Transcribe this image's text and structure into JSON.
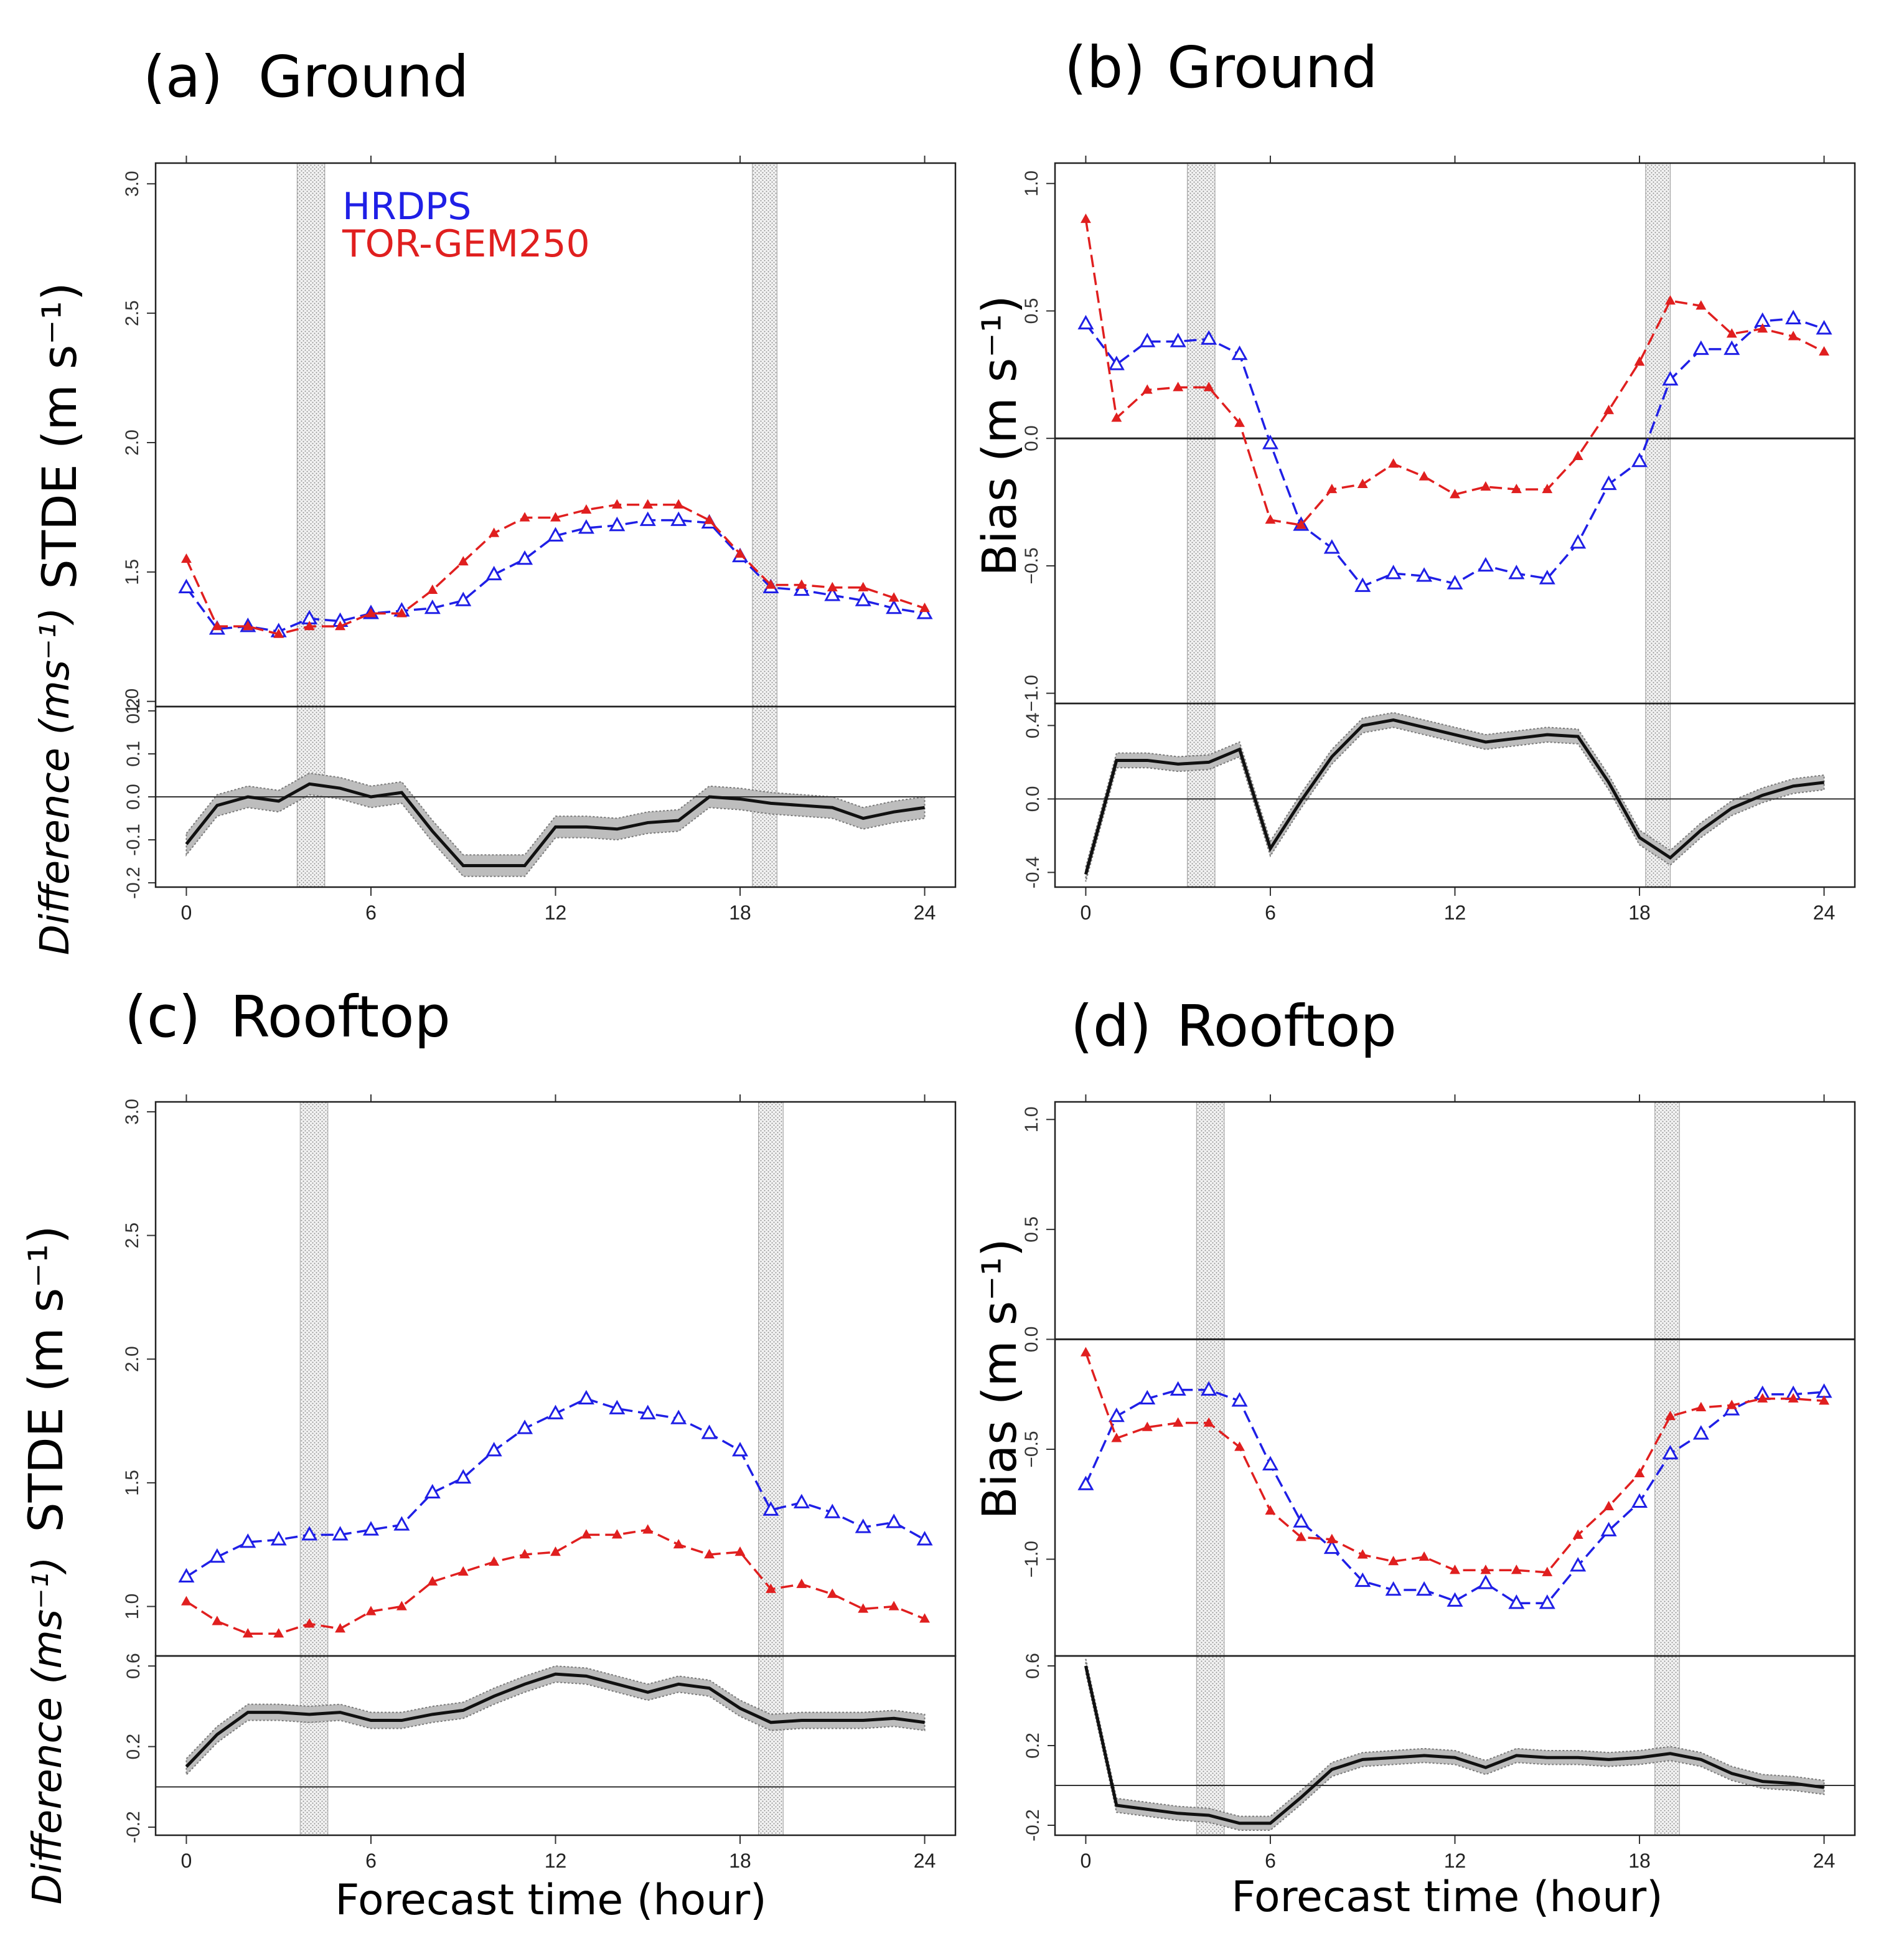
{
  "figure": {
    "x_axis_title": "Forecast time (hour)",
    "diff_axis_title": "Difference (ms⁻¹)",
    "legend": [
      {
        "name": "HRDPS",
        "color": "#1f1fe6"
      },
      {
        "name": "TOR-GEM250",
        "color": "#e01f1f"
      }
    ],
    "colors": {
      "hrdps": "#1f1fe6",
      "torgem": "#e01f1f",
      "diff_line": "#111111",
      "band": "#bdbdbd",
      "shade": "#9a9a9a"
    }
  },
  "chart_data": [
    {
      "id": "a",
      "type": "line",
      "label": "(a)",
      "title": "Ground",
      "ylabel": "STDE (m s⁻¹)",
      "x": [
        0,
        1,
        2,
        3,
        4,
        5,
        6,
        7,
        8,
        9,
        10,
        11,
        12,
        13,
        14,
        15,
        16,
        17,
        18,
        19,
        20,
        21,
        22,
        23,
        24
      ],
      "xlim": [
        -1,
        25
      ],
      "xticks": [
        0,
        6,
        12,
        18,
        24
      ],
      "ylim": [
        0.98,
        3.08
      ],
      "yticks": [
        1.0,
        1.5,
        2.0,
        2.5,
        3.0
      ],
      "ytick_labels": [
        "1.0",
        "1.5",
        "2.0",
        "2.5",
        "3.0"
      ],
      "zero_line": false,
      "shaded_x": [
        [
          3.6,
          4.5
        ],
        [
          18.4,
          19.2
        ]
      ],
      "series": [
        {
          "name": "HRDPS",
          "marker": "open-triangle",
          "values": [
            1.44,
            1.28,
            1.29,
            1.27,
            1.32,
            1.31,
            1.34,
            1.35,
            1.36,
            1.39,
            1.49,
            1.55,
            1.64,
            1.67,
            1.68,
            1.7,
            1.7,
            1.69,
            1.56,
            1.44,
            1.43,
            1.41,
            1.39,
            1.36,
            1.34
          ]
        },
        {
          "name": "TOR-GEM250",
          "marker": "filled-triangle",
          "values": [
            1.55,
            1.29,
            1.29,
            1.26,
            1.29,
            1.29,
            1.34,
            1.34,
            1.43,
            1.54,
            1.65,
            1.71,
            1.71,
            1.74,
            1.76,
            1.76,
            1.76,
            1.7,
            1.57,
            1.45,
            1.45,
            1.44,
            1.44,
            1.4,
            1.36
          ]
        }
      ],
      "difference": {
        "ylim": [
          -0.21,
          0.21
        ],
        "yticks": [
          -0.2,
          -0.1,
          0.0,
          0.1,
          0.2
        ],
        "ytick_labels": [
          "-0.2",
          "-0.1",
          "0.0",
          "0.1",
          "0.2"
        ],
        "values": [
          -0.11,
          -0.02,
          0.0,
          -0.01,
          0.03,
          0.02,
          0.0,
          0.01,
          -0.08,
          -0.16,
          -0.16,
          -0.16,
          -0.07,
          -0.07,
          -0.075,
          -0.06,
          -0.055,
          0.0,
          -0.005,
          -0.015,
          -0.02,
          -0.025,
          -0.05,
          -0.035,
          -0.025
        ],
        "band": 0.025
      }
    },
    {
      "id": "b",
      "type": "line",
      "label": "(b)",
      "title": "Ground",
      "ylabel": "Bias (m s⁻¹)",
      "x": [
        0,
        1,
        2,
        3,
        4,
        5,
        6,
        7,
        8,
        9,
        10,
        11,
        12,
        13,
        14,
        15,
        16,
        17,
        18,
        19,
        20,
        21,
        22,
        23,
        24
      ],
      "xlim": [
        -1,
        25
      ],
      "xticks": [
        0,
        6,
        12,
        18,
        24
      ],
      "ylim": [
        -1.04,
        1.08
      ],
      "yticks": [
        -1.0,
        -0.5,
        0.0,
        0.5,
        1.0
      ],
      "ytick_labels": [
        "−1.0",
        "−0.5",
        "0.0",
        "0.5",
        "1.0"
      ],
      "zero_line": true,
      "shaded_x": [
        [
          3.3,
          4.2
        ],
        [
          18.2,
          19.0
        ]
      ],
      "series": [
        {
          "name": "HRDPS",
          "marker": "open-triangle",
          "values": [
            0.45,
            0.29,
            0.38,
            0.38,
            0.39,
            0.33,
            -0.02,
            -0.34,
            -0.43,
            -0.58,
            -0.53,
            -0.54,
            -0.57,
            -0.5,
            -0.53,
            -0.55,
            -0.41,
            -0.18,
            -0.09,
            0.23,
            0.35,
            0.35,
            0.46,
            0.47,
            0.43
          ]
        },
        {
          "name": "TOR-GEM250",
          "marker": "filled-triangle",
          "values": [
            0.86,
            0.08,
            0.19,
            0.2,
            0.2,
            0.06,
            -0.32,
            -0.34,
            -0.2,
            -0.18,
            -0.1,
            -0.15,
            -0.22,
            -0.19,
            -0.2,
            -0.2,
            -0.07,
            0.11,
            0.3,
            0.54,
            0.52,
            0.41,
            0.43,
            0.4,
            0.34
          ]
        }
      ],
      "difference": {
        "ylim": [
          -0.48,
          0.52
        ],
        "yticks": [
          -0.4,
          0.0,
          0.4
        ],
        "ytick_labels": [
          "-0.4",
          "0.0",
          "0.4"
        ],
        "values": [
          -0.41,
          0.21,
          0.21,
          0.19,
          0.2,
          0.27,
          -0.27,
          -0.01,
          0.23,
          0.4,
          0.43,
          0.39,
          0.35,
          0.31,
          0.33,
          0.35,
          0.34,
          0.09,
          -0.21,
          -0.32,
          -0.17,
          -0.05,
          0.02,
          0.07,
          0.09
        ],
        "band": 0.04
      }
    },
    {
      "id": "c",
      "type": "line",
      "label": "(c)",
      "title": "Rooftop",
      "ylabel": "STDE (m s⁻¹)",
      "x": [
        0,
        1,
        2,
        3,
        4,
        5,
        6,
        7,
        8,
        9,
        10,
        11,
        12,
        13,
        14,
        15,
        16,
        17,
        18,
        19,
        20,
        21,
        22,
        23,
        24
      ],
      "xlim": [
        -1,
        25
      ],
      "xticks": [
        0,
        6,
        12,
        18,
        24
      ],
      "ylim": [
        0.8,
        3.04
      ],
      "yticks": [
        1.0,
        1.5,
        2.0,
        2.5,
        3.0
      ],
      "ytick_labels": [
        "1.0",
        "1.5",
        "2.0",
        "2.5",
        "3.0"
      ],
      "zero_line": false,
      "shaded_x": [
        [
          3.7,
          4.6
        ],
        [
          18.6,
          19.4
        ]
      ],
      "series": [
        {
          "name": "HRDPS",
          "marker": "open-triangle",
          "values": [
            1.12,
            1.2,
            1.26,
            1.27,
            1.29,
            1.29,
            1.31,
            1.33,
            1.46,
            1.52,
            1.63,
            1.72,
            1.78,
            1.84,
            1.8,
            1.78,
            1.76,
            1.7,
            1.63,
            1.39,
            1.42,
            1.38,
            1.32,
            1.34,
            1.27
          ]
        },
        {
          "name": "TOR-GEM250",
          "marker": "filled-triangle",
          "values": [
            1.02,
            0.94,
            0.89,
            0.89,
            0.93,
            0.91,
            0.98,
            1.0,
            1.1,
            1.14,
            1.18,
            1.21,
            1.22,
            1.29,
            1.29,
            1.31,
            1.25,
            1.21,
            1.22,
            1.07,
            1.09,
            1.05,
            0.99,
            1.0,
            0.95
          ]
        }
      ],
      "difference": {
        "ylim": [
          -0.24,
          0.65
        ],
        "yticks": [
          -0.2,
          0.2,
          0.6
        ],
        "ytick_labels": [
          "-0.2",
          "0.2",
          "0.6"
        ],
        "values": [
          0.1,
          0.26,
          0.37,
          0.37,
          0.36,
          0.37,
          0.33,
          0.33,
          0.36,
          0.38,
          0.45,
          0.51,
          0.56,
          0.55,
          0.51,
          0.47,
          0.51,
          0.49,
          0.39,
          0.32,
          0.33,
          0.33,
          0.33,
          0.34,
          0.32
        ],
        "band": 0.04
      }
    },
    {
      "id": "d",
      "type": "line",
      "label": "(d)",
      "title": "Rooftop",
      "ylabel": "Bias (m s⁻¹)",
      "x": [
        0,
        1,
        2,
        3,
        4,
        5,
        6,
        7,
        8,
        9,
        10,
        11,
        12,
        13,
        14,
        15,
        16,
        17,
        18,
        19,
        20,
        21,
        22,
        23,
        24
      ],
      "xlim": [
        -1,
        25
      ],
      "xticks": [
        0,
        6,
        12,
        18,
        24
      ],
      "ylim": [
        -1.44,
        1.08
      ],
      "yticks": [
        -1.0,
        -0.5,
        0.0,
        0.5,
        1.0
      ],
      "ytick_labels": [
        "−1.0",
        "−0.5",
        "0.0",
        "0.5",
        "1.0"
      ],
      "zero_line": true,
      "shaded_x": [
        [
          3.6,
          4.5
        ],
        [
          18.5,
          19.3
        ]
      ],
      "series": [
        {
          "name": "HRDPS",
          "marker": "open-triangle",
          "values": [
            -0.66,
            -0.35,
            -0.27,
            -0.23,
            -0.23,
            -0.28,
            -0.57,
            -0.83,
            -0.95,
            -1.1,
            -1.14,
            -1.14,
            -1.19,
            -1.11,
            -1.2,
            -1.2,
            -1.03,
            -0.87,
            -0.74,
            -0.52,
            -0.43,
            -0.32,
            -0.25,
            -0.25,
            -0.24
          ]
        },
        {
          "name": "TOR-GEM250",
          "marker": "filled-triangle",
          "values": [
            -0.06,
            -0.45,
            -0.4,
            -0.38,
            -0.38,
            -0.49,
            -0.78,
            -0.9,
            -0.91,
            -0.98,
            -1.01,
            -0.99,
            -1.05,
            -1.05,
            -1.05,
            -1.06,
            -0.89,
            -0.76,
            -0.61,
            -0.35,
            -0.31,
            -0.3,
            -0.27,
            -0.27,
            -0.28
          ]
        }
      ],
      "difference": {
        "ylim": [
          -0.25,
          0.65
        ],
        "yticks": [
          -0.2,
          0.2,
          0.6
        ],
        "ytick_labels": [
          "-0.2",
          "0.2",
          "0.6"
        ],
        "values": [
          0.6,
          -0.1,
          -0.12,
          -0.14,
          -0.15,
          -0.19,
          -0.19,
          -0.06,
          0.08,
          0.13,
          0.14,
          0.15,
          0.14,
          0.09,
          0.15,
          0.14,
          0.14,
          0.13,
          0.14,
          0.16,
          0.13,
          0.06,
          0.02,
          0.01,
          -0.01
        ],
        "band": 0.035
      }
    }
  ]
}
